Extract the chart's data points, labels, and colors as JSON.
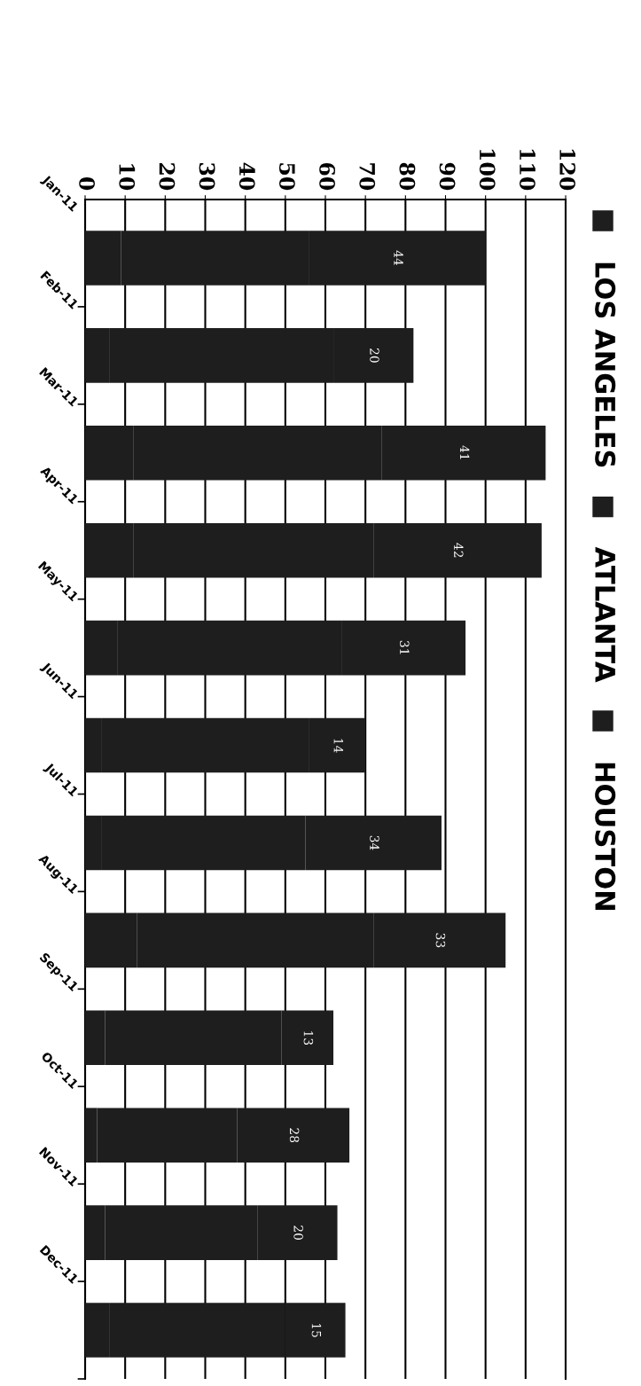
{
  "chart_data": {
    "type": "bar",
    "orientation": "horizontal",
    "stacked": true,
    "categories": [
      "Jan-11",
      "Feb-11",
      "Mar-11",
      "Apr-11",
      "May-11",
      "Jun-11",
      "Jul-11",
      "Aug-11",
      "Sep-11",
      "Oct-11",
      "Nov-11",
      "Dec-11"
    ],
    "series": [
      {
        "name": "LOS ANGELES",
        "color": "#1e1e1e",
        "values": [
          9,
          6,
          12,
          12,
          8,
          4,
          4,
          13,
          5,
          3,
          5,
          6
        ]
      },
      {
        "name": "ATLANTA",
        "color": "#1e1e1e",
        "values": [
          47,
          56,
          62,
          60,
          56,
          52,
          51,
          59,
          44,
          35,
          38,
          44
        ]
      },
      {
        "name": "HOUSTON",
        "color": "#1e1e1e",
        "values": [
          44,
          20,
          41,
          42,
          31,
          14,
          34,
          33,
          13,
          28,
          20,
          15
        ],
        "value_labels": [
          "44",
          "20",
          "41",
          "42",
          "31",
          "14",
          "34",
          "33",
          "13",
          "28",
          "20",
          "15"
        ]
      }
    ],
    "xlim": [
      0,
      120
    ],
    "xticks": [
      0,
      10,
      20,
      30,
      40,
      50,
      60,
      70,
      80,
      90,
      100,
      110,
      120
    ],
    "grid": "x",
    "legend": "right"
  }
}
